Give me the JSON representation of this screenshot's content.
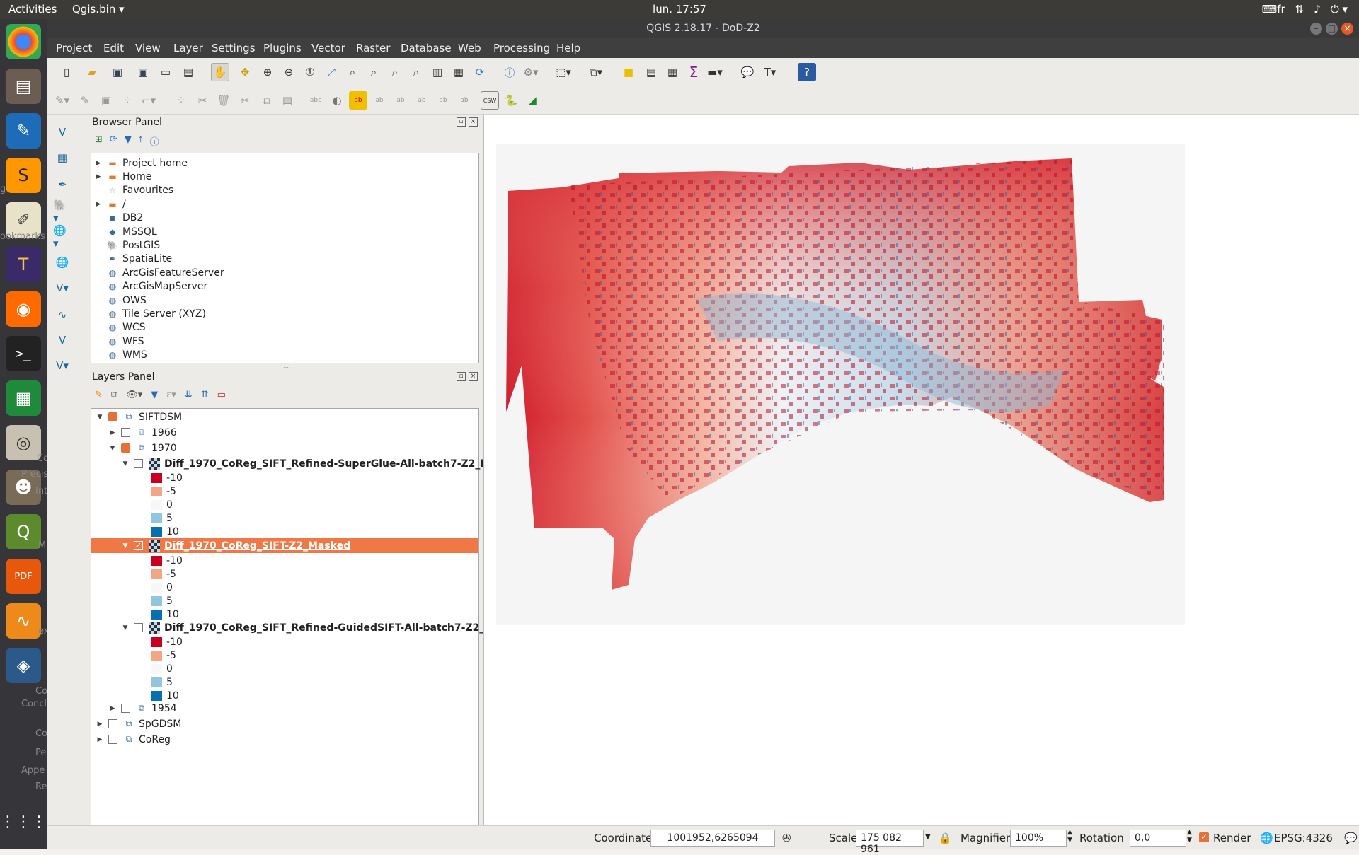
{
  "topbar": {
    "activities": "Activities",
    "app_name": "Qgis.bin ▾",
    "clock": "lun. 17:57",
    "keyboard": "fr",
    "tray_icons": [
      "keyboard-icon",
      "network-icon",
      "volume-icon",
      "power-icon"
    ]
  },
  "dock": {
    "ghost_texts": [
      "g",
      "ookmarks",
      "Co",
      "Precis",
      "Int",
      "Me",
      "ex",
      "Co",
      "Concl",
      "Co",
      "Pe",
      "Appe",
      "Re"
    ]
  },
  "window": {
    "title": "QGIS 2.18.17 - DoD-Z2"
  },
  "menu": [
    "Project",
    "Edit",
    "View",
    "Layer",
    "Settings",
    "Plugins",
    "Vector",
    "Raster",
    "Database",
    "Web",
    "Processing",
    "Help"
  ],
  "browser": {
    "title": "Browser Panel",
    "items": [
      {
        "label": "Project home",
        "icon": "folder-icon",
        "expandable": true
      },
      {
        "label": "Home",
        "icon": "folder-icon",
        "expandable": true
      },
      {
        "label": "Favourites",
        "icon": "star-icon",
        "expandable": false
      },
      {
        "label": "/",
        "icon": "folder-icon",
        "expandable": true
      },
      {
        "label": "DB2",
        "icon": "db2-icon",
        "expandable": false
      },
      {
        "label": "MSSQL",
        "icon": "mssql-icon",
        "expandable": false
      },
      {
        "label": "PostGIS",
        "icon": "postgis-icon",
        "expandable": false
      },
      {
        "label": "SpatiaLite",
        "icon": "spatialite-icon",
        "expandable": false
      },
      {
        "label": "ArcGisFeatureServer",
        "icon": "arcgis-icon",
        "expandable": false
      },
      {
        "label": "ArcGisMapServer",
        "icon": "arcgis-icon",
        "expandable": false
      },
      {
        "label": "OWS",
        "icon": "globe-icon",
        "expandable": false
      },
      {
        "label": "Tile Server (XYZ)",
        "icon": "globe-icon",
        "expandable": false
      },
      {
        "label": "WCS",
        "icon": "globe-icon",
        "expandable": false
      },
      {
        "label": "WFS",
        "icon": "globe-icon",
        "expandable": false
      },
      {
        "label": "WMS",
        "icon": "globe-icon",
        "expandable": false
      }
    ]
  },
  "layers": {
    "title": "Layers Panel",
    "group_root": "SIFTDSM",
    "group_1966": "1966",
    "group_1970": "1970",
    "layer_a": "Diff_1970_CoReg_SIFT_Refined-SuperGlue-All-batch7-Z2_M...",
    "layer_b": "Diff_1970_CoReg_SIFT-Z2_Masked",
    "layer_c": "Diff_1970_CoReg_SIFT_Refined-GuidedSIFT-All-batch7-Z2_...",
    "legend": [
      "-10",
      "-5",
      "0",
      "5",
      "10"
    ],
    "legend_colors": [
      "#ca0020",
      "#f4a582",
      "#f7f7f7",
      "#92c5de",
      "#0571b0"
    ],
    "group_1954": "1954",
    "group_spgdsm": "SpGDSM",
    "group_coreg": "CoReg",
    "selected_highlight": "#f07746"
  },
  "status": {
    "coordinate_label": "Coordinate",
    "coordinate_value": "1001952,6265094",
    "scale_label": "Scale",
    "scale_value": "175 082 961",
    "magnifier_label": "Magnifier",
    "magnifier_value": "100%",
    "rotation_label": "Rotation",
    "rotation_value": "0,0",
    "render_label": "Render",
    "crs": "EPSG:4326"
  }
}
